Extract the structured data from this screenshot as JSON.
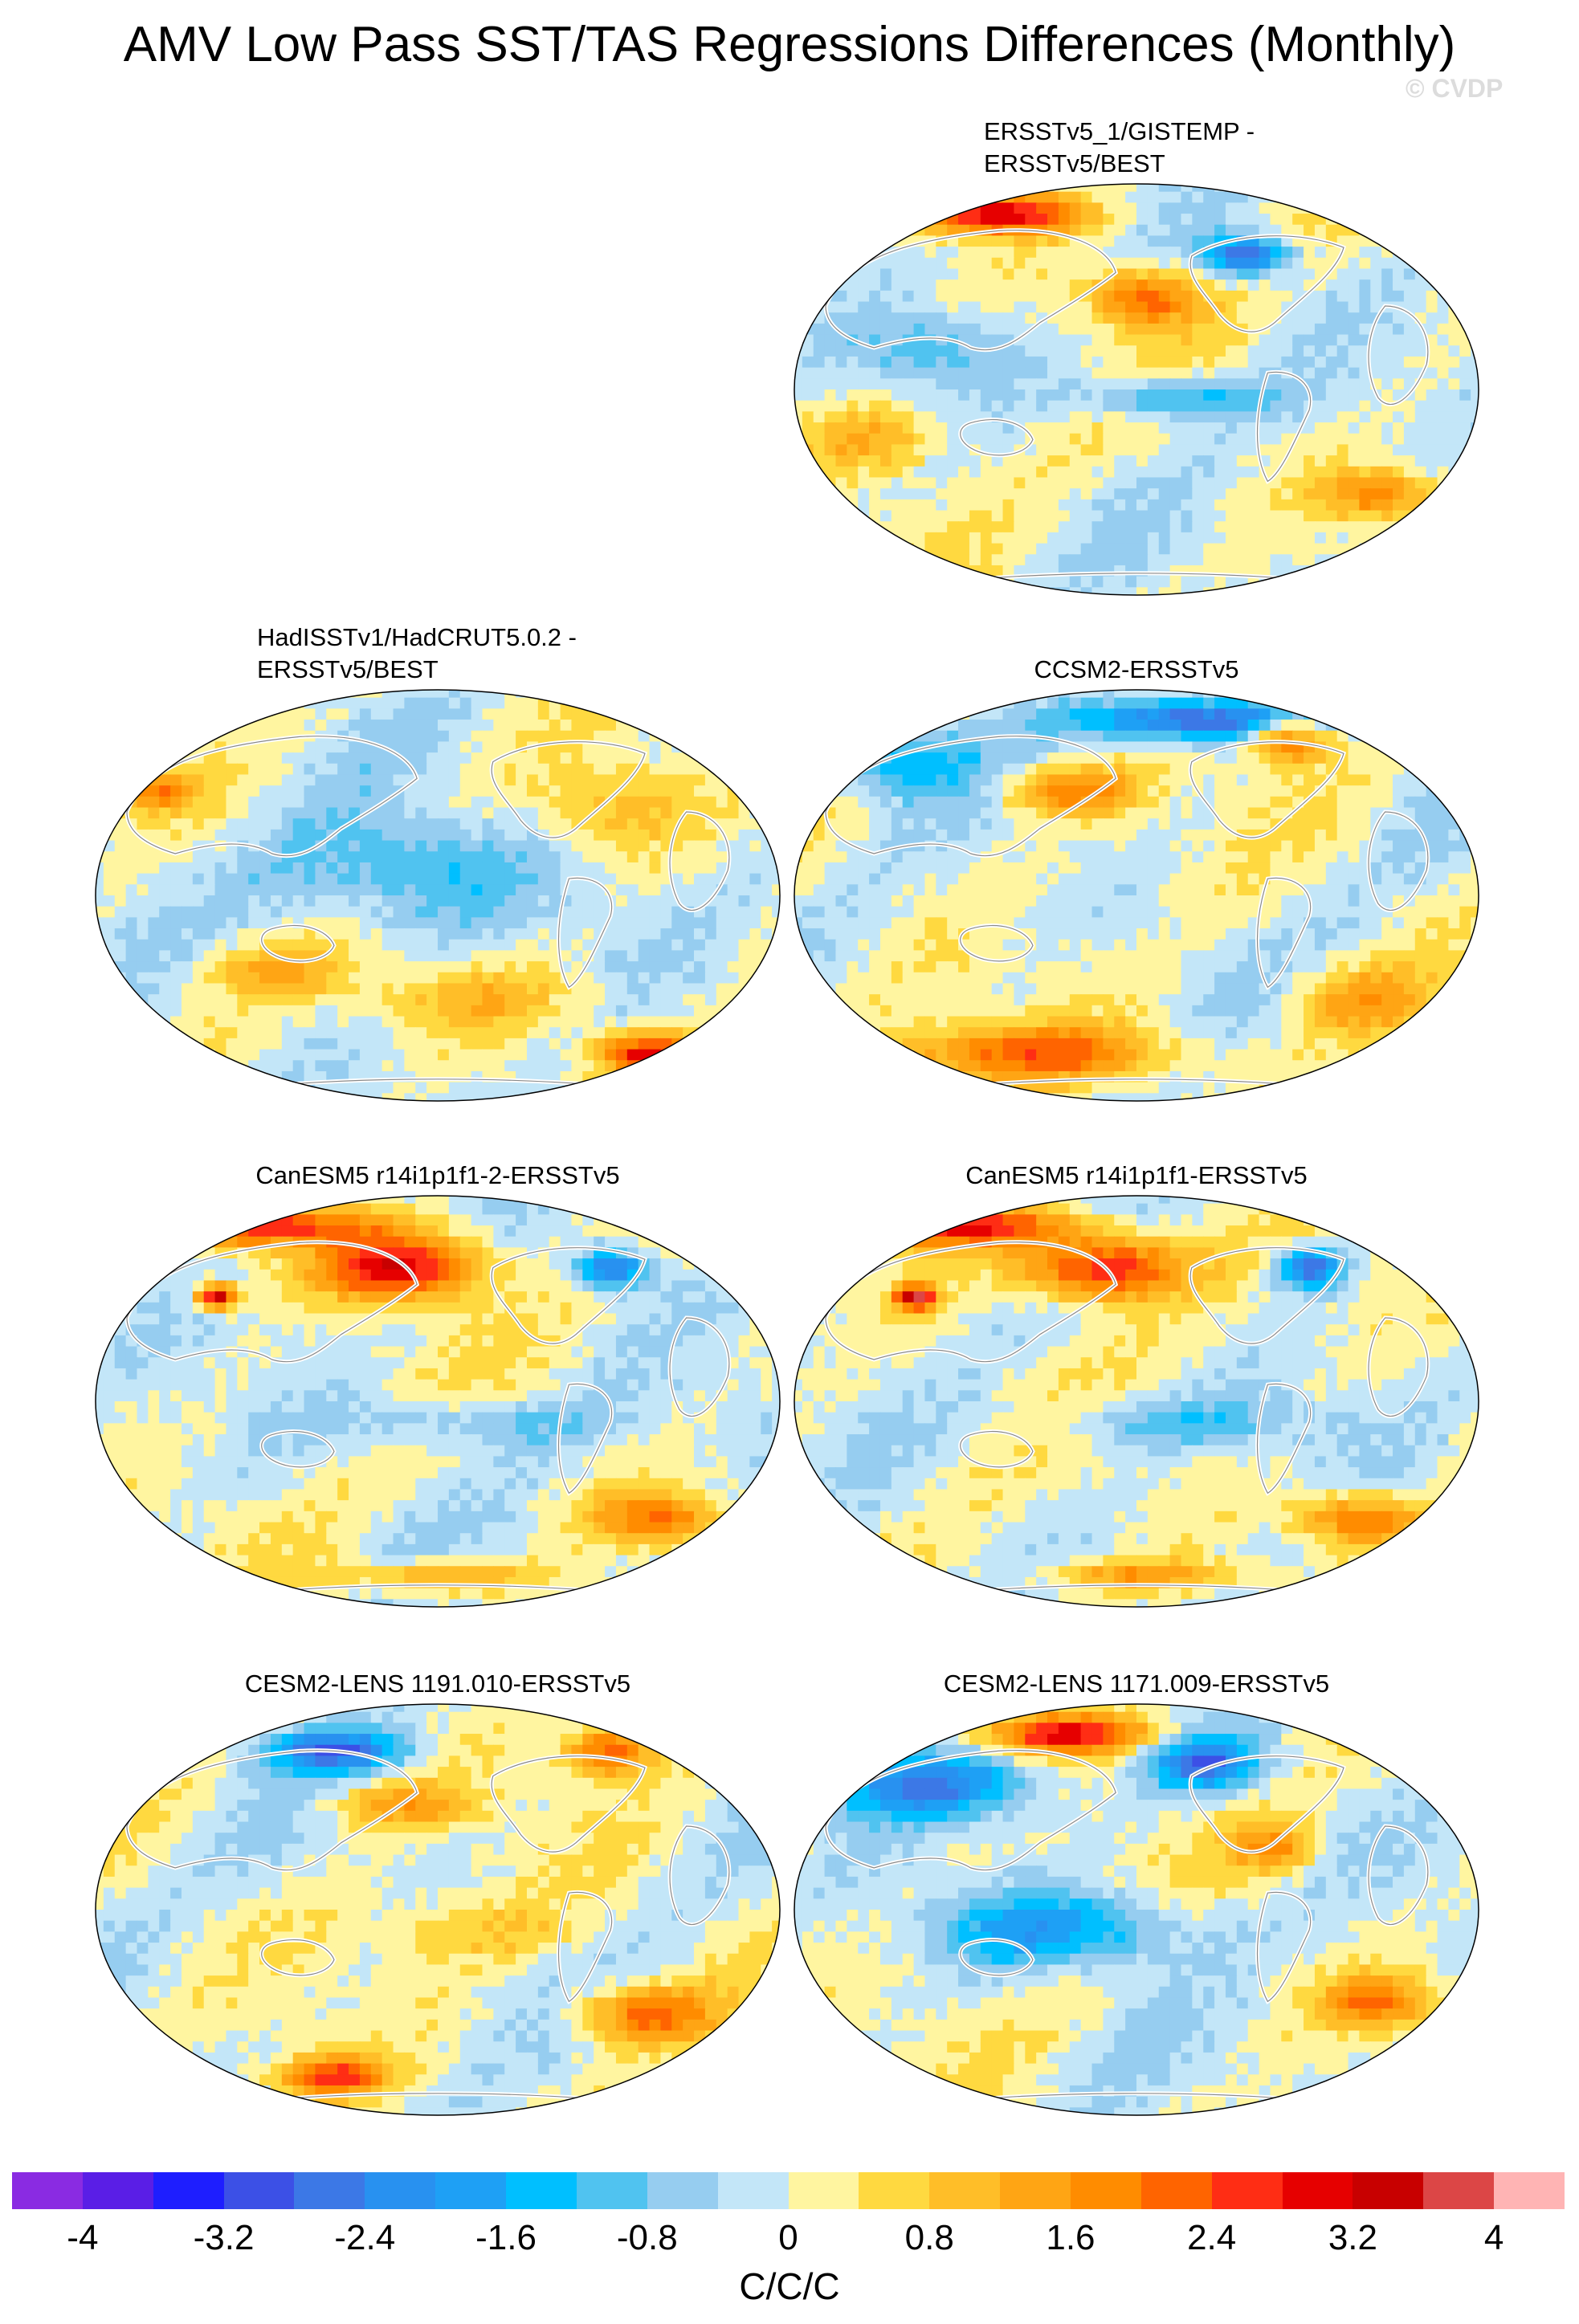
{
  "title": "AMV Low Pass SST/TAS Regressions Differences (Monthly)",
  "watermark": "© CVDP",
  "chart_data": {
    "type": "heatmap",
    "title": "AMV Low Pass SST/TAS Regressions Differences (Monthly)",
    "projection": "global map (ellipse)",
    "units": "C/C/C",
    "panels": [
      {
        "id": "p1",
        "label": "ERSSTv5_1/GISTEMP -\nERSSTv5/BEST"
      },
      {
        "id": "p2",
        "label": "HadISSTv1/HadCRUT5.0.2 -\nERSSTv5/BEST"
      },
      {
        "id": "p3",
        "label": "CCSM2-ERSSTv5"
      },
      {
        "id": "p4",
        "label": "CanESM5 r14i1p1f1-2-ERSSTv5"
      },
      {
        "id": "p5",
        "label": "CanESM5 r14i1p1f1-ERSSTv5"
      },
      {
        "id": "p6",
        "label": "CESM2-LENS 1191.010-ERSSTv5"
      },
      {
        "id": "p7",
        "label": "CESM2-LENS 1171.009-ERSSTv5"
      }
    ],
    "colorbar": {
      "levels": [
        -4,
        -3.6,
        -3.2,
        -2.8,
        -2.4,
        -2.0,
        -1.6,
        -1.2,
        -0.8,
        -0.4,
        0,
        0.4,
        0.8,
        1.2,
        1.6,
        2.0,
        2.4,
        2.8,
        3.2,
        3.6,
        4
      ],
      "colors": [
        "#8a2be2",
        "#5a1ee6",
        "#1e1eff",
        "#3c50e6",
        "#3c78e6",
        "#2891f0",
        "#1ea0f5",
        "#00bfff",
        "#50c3f0",
        "#96cdf0",
        "#c3e6f8",
        "#fff5a0",
        "#ffd940",
        "#ffbe28",
        "#ffa514",
        "#ff8c00",
        "#ff6400",
        "#ff2d14",
        "#e60000",
        "#c80000",
        "#dc4646",
        "#ffb4b4"
      ],
      "tick_labels": [
        "-4",
        "-3.2",
        "-2.4",
        "-1.6",
        "-0.8",
        "0",
        "0.8",
        "1.6",
        "2.4",
        "3.2",
        "4"
      ],
      "label": "C/C/C"
    }
  }
}
